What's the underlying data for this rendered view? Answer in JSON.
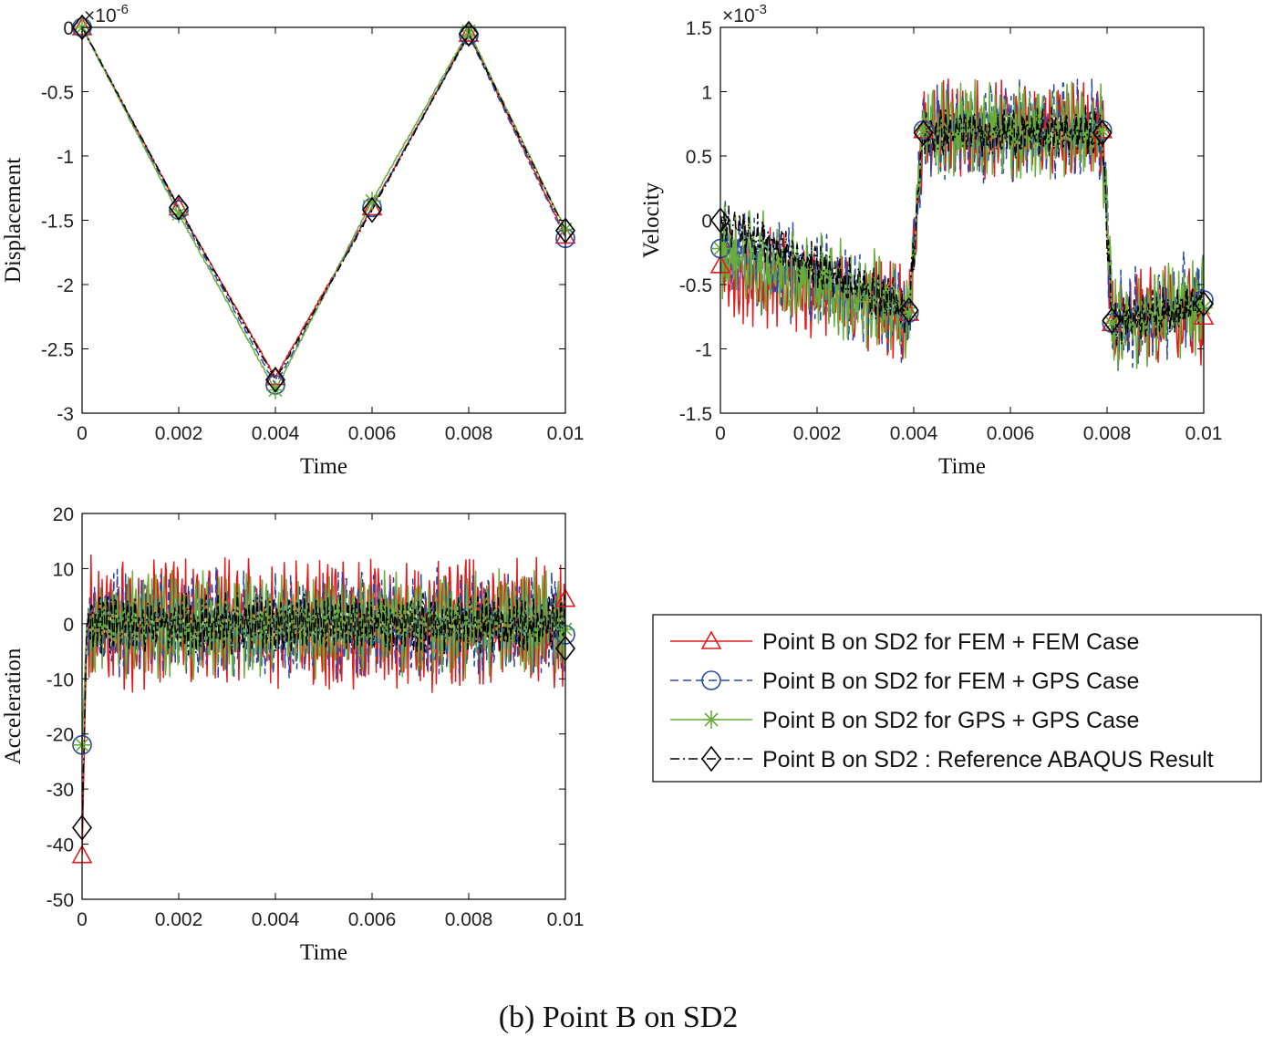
{
  "caption": "(b) Point B on SD2",
  "legend": [
    {
      "label": "Point B on SD2 for FEM + FEM Case",
      "color": "#e41a1c",
      "dash": "solid",
      "marker": "triangle"
    },
    {
      "label": "Point B on SD2 for FEM + GPS Case",
      "color": "#2a48a6",
      "dash": "dashed",
      "marker": "circle"
    },
    {
      "label": "Point B on SD2 for GPS + GPS Case",
      "color": "#66ad3a",
      "dash": "solid",
      "marker": "star"
    },
    {
      "label": "Point B on SD2 : Reference ABAQUS Result",
      "color": "#000000",
      "dash": "dashdot",
      "marker": "diamond"
    }
  ],
  "chart_data": [
    {
      "id": "displacement",
      "type": "line",
      "xlabel": "Time",
      "ylabel": "Displacement",
      "xlim": [
        0,
        0.01
      ],
      "ylim": [
        -3,
        0
      ],
      "xticks": [
        "0",
        "0.002",
        "0.004",
        "0.006",
        "0.008",
        "0.01"
      ],
      "yticks": [
        "0",
        "-0.5",
        "-1",
        "-1.5",
        "-2",
        "-2.5",
        "-3"
      ],
      "exponent": "×10^-6",
      "series": [
        {
          "name": "Point B on SD2 for FEM + FEM Case",
          "x": [
            0,
            0.002,
            0.004,
            0.006,
            0.008,
            0.01
          ],
          "y": [
            0,
            -1.4,
            -2.72,
            -1.4,
            -0.05,
            -1.62
          ]
        },
        {
          "name": "Point B on SD2 for FEM + GPS Case",
          "x": [
            0,
            0.002,
            0.004,
            0.006,
            0.008,
            0.01
          ],
          "y": [
            0,
            -1.42,
            -2.78,
            -1.4,
            -0.06,
            -1.64
          ]
        },
        {
          "name": "Point B on SD2 for GPS + GPS Case",
          "x": [
            0,
            0.002,
            0.004,
            0.006,
            0.008,
            0.01
          ],
          "y": [
            0,
            -1.45,
            -2.82,
            -1.35,
            -0.03,
            -1.57
          ]
        },
        {
          "name": "Point B on SD2 : Reference ABAQUS Result",
          "x": [
            0,
            0.002,
            0.004,
            0.006,
            0.008,
            0.01
          ],
          "y": [
            0,
            -1.4,
            -2.74,
            -1.42,
            -0.05,
            -1.58
          ]
        }
      ]
    },
    {
      "id": "velocity",
      "type": "line",
      "xlabel": "Time",
      "ylabel": "Velocity",
      "xlim": [
        0,
        0.01
      ],
      "ylim": [
        -1.5,
        1.5
      ],
      "xticks": [
        "0",
        "0.002",
        "0.004",
        "0.006",
        "0.008",
        "0.01"
      ],
      "yticks": [
        "1.5",
        "1",
        "0.5",
        "0",
        "-0.5",
        "-1",
        "-1.5"
      ],
      "exponent": "×10^-3",
      "series": [
        {
          "name": "Point B on SD2 for FEM + FEM Case",
          "x": [
            0,
            0.0039,
            0.0042,
            0.0079,
            0.0081,
            0.01
          ],
          "y": [
            -0.35,
            -0.72,
            0.7,
            0.7,
            -0.8,
            -0.75
          ]
        },
        {
          "name": "Point B on SD2 for FEM + GPS Case",
          "x": [
            0,
            0.0039,
            0.0042,
            0.0079,
            0.0081,
            0.01
          ],
          "y": [
            -0.22,
            -0.72,
            0.7,
            0.7,
            -0.8,
            -0.62
          ]
        },
        {
          "name": "Point B on SD2 for GPS + GPS Case",
          "x": [
            0,
            0.0039,
            0.0042,
            0.0079,
            0.0081,
            0.01
          ],
          "y": [
            -0.22,
            -0.72,
            0.7,
            0.7,
            -0.8,
            -0.68
          ]
        },
        {
          "name": "Point B on SD2 : Reference ABAQUS Result",
          "x": [
            0,
            0.0039,
            0.0042,
            0.0079,
            0.0081,
            0.01
          ],
          "y": [
            0,
            -0.7,
            0.68,
            0.68,
            -0.78,
            -0.65
          ]
        }
      ]
    },
    {
      "id": "acceleration",
      "type": "line",
      "xlabel": "Time",
      "ylabel": "Acceleration",
      "xlim": [
        0,
        0.01
      ],
      "ylim": [
        -50,
        20
      ],
      "xticks": [
        "0",
        "0.002",
        "0.004",
        "0.006",
        "0.008",
        "0.01"
      ],
      "yticks": [
        "20",
        "10",
        "0",
        "-10",
        "-20",
        "-30",
        "-40",
        "-50"
      ],
      "series": [
        {
          "name": "Point B on SD2 for FEM + FEM Case",
          "x": [
            0,
            0.0001,
            0.01
          ],
          "y": [
            -42,
            0,
            4.5
          ]
        },
        {
          "name": "Point B on SD2 for FEM + GPS Case",
          "x": [
            0,
            0.0001,
            0.01
          ],
          "y": [
            -22,
            0,
            -2
          ]
        },
        {
          "name": "Point B on SD2 for GPS + GPS Case",
          "x": [
            0,
            0.0001,
            0.01
          ],
          "y": [
            -22,
            0,
            -1
          ]
        },
        {
          "name": "Point B on SD2 : Reference ABAQUS Result",
          "x": [
            0,
            0.0001,
            0.01
          ],
          "y": [
            -37,
            0,
            -4.5
          ]
        }
      ]
    }
  ]
}
